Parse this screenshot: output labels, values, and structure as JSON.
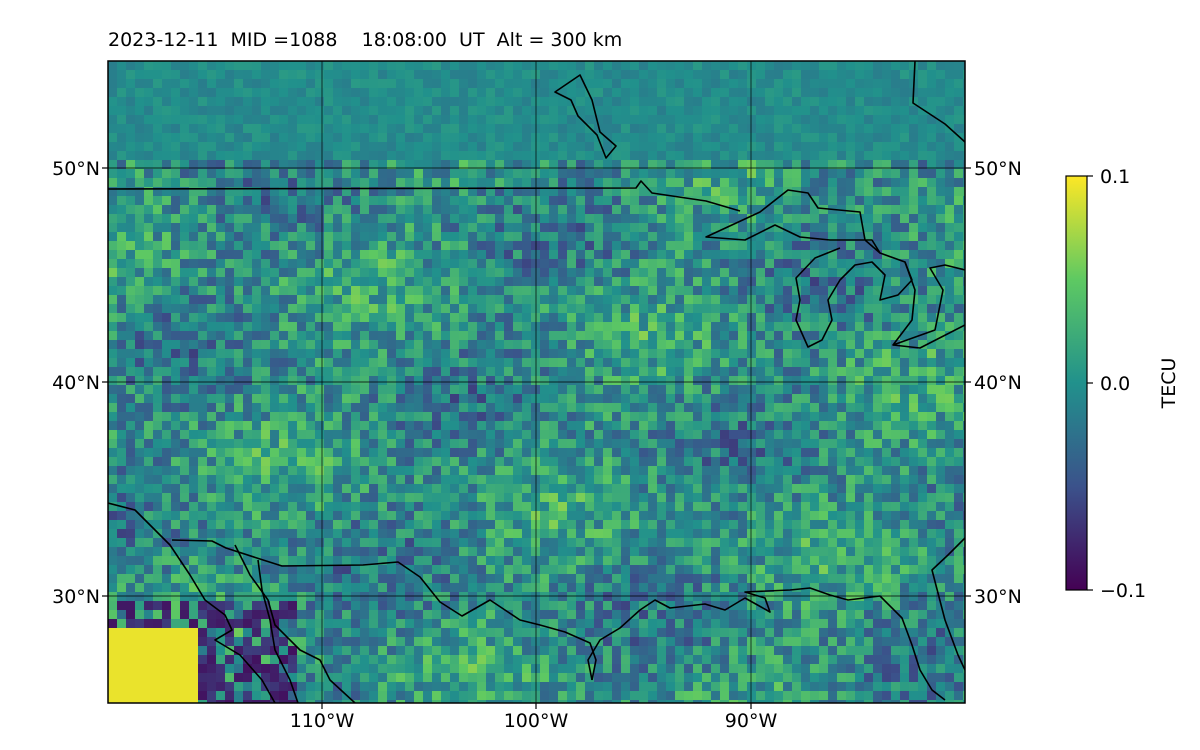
{
  "title": {
    "date": "2023-12-11",
    "mid": "MID =1088",
    "time": "18:08:00  UT",
    "alt": "Alt = 300 km"
  },
  "map": {
    "type": "heatmap",
    "lon_range": [
      -120,
      -80
    ],
    "lat_range": [
      25,
      55
    ],
    "lat_ticks": [
      {
        "value": 50,
        "label": "50°N"
      },
      {
        "value": 40,
        "label": "40°N"
      },
      {
        "value": 30,
        "label": "30°N"
      }
    ],
    "lon_ticks": [
      {
        "value": -110,
        "label": "110°W"
      },
      {
        "value": -100,
        "label": "100°W"
      },
      {
        "value": -90,
        "label": "90°W"
      }
    ],
    "grid": true,
    "coastlines": true,
    "colormap": "viridis"
  },
  "colorbar": {
    "label": "TECU",
    "range": [
      -0.1,
      0.1
    ],
    "ticks": [
      {
        "value": 0.1,
        "label": "0.1"
      },
      {
        "value": 0.0,
        "label": "0.0"
      },
      {
        "value": -0.1,
        "label": "−0.1"
      }
    ],
    "colors": [
      "#440154",
      "#3b528b",
      "#21918c",
      "#5ec962",
      "#fde725"
    ]
  }
}
